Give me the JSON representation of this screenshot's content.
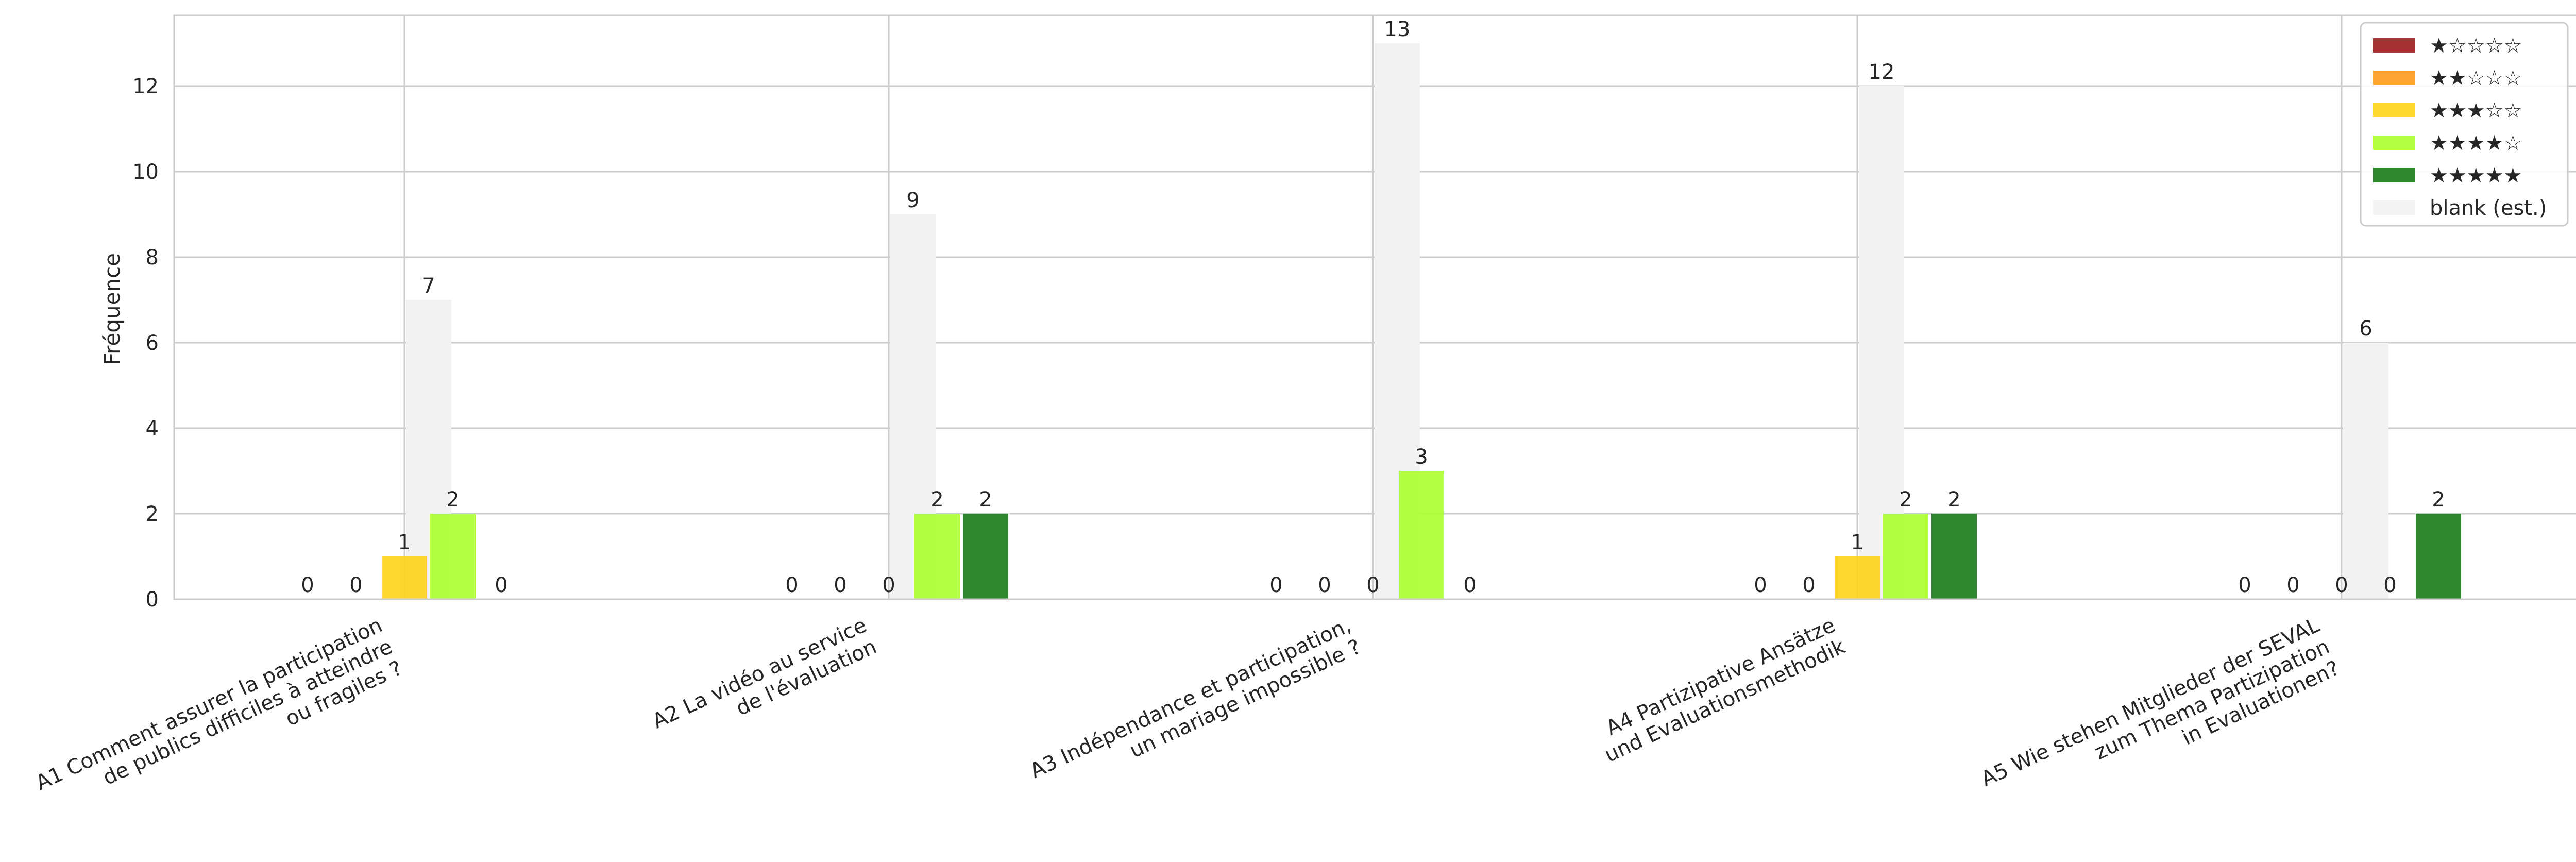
{
  "chart_data": {
    "type": "bar",
    "title": "",
    "xlabel": "",
    "ylabel": "Fréquence",
    "ylim": [
      0,
      13.65
    ],
    "yticks": [
      0,
      2,
      4,
      6,
      8,
      10,
      12
    ],
    "grid": true,
    "legend_position": "top-right",
    "categories": [
      [
        "A1 Comment assurer la participation",
        "de publics difficiles à atteindre",
        "ou fragiles ?"
      ],
      [
        "A2 La vidéo au service",
        "de l'évaluation"
      ],
      [
        "A3 Indépendance et participation,",
        "un mariage impossible ?"
      ],
      [
        "A4 Partizipative Ansätze",
        "und Evaluationsmethodik"
      ],
      [
        "A5 Wie stehen Mitglieder der SEVAL",
        "zum Thema Partizipation",
        "in Evaluationen?"
      ]
    ],
    "series": [
      {
        "name": "★☆☆☆☆",
        "color": "#9b1c1c",
        "values": [
          0,
          0,
          0,
          0,
          0
        ]
      },
      {
        "name": "★★☆☆☆",
        "color": "#ff9a1f",
        "values": [
          0,
          0,
          0,
          0,
          0
        ]
      },
      {
        "name": "★★★☆☆",
        "color": "#ffd11a",
        "values": [
          1,
          0,
          0,
          1,
          0
        ]
      },
      {
        "name": "★★★★☆",
        "color": "#adff2f",
        "values": [
          2,
          2,
          3,
          2,
          0
        ]
      },
      {
        "name": "★★★★★",
        "color": "#1a7a1a",
        "values": [
          0,
          2,
          0,
          2,
          2
        ]
      },
      {
        "name": "blank (est.)",
        "color": "#f2f2f2",
        "values": [
          7,
          9,
          13,
          12,
          6
        ]
      }
    ]
  }
}
